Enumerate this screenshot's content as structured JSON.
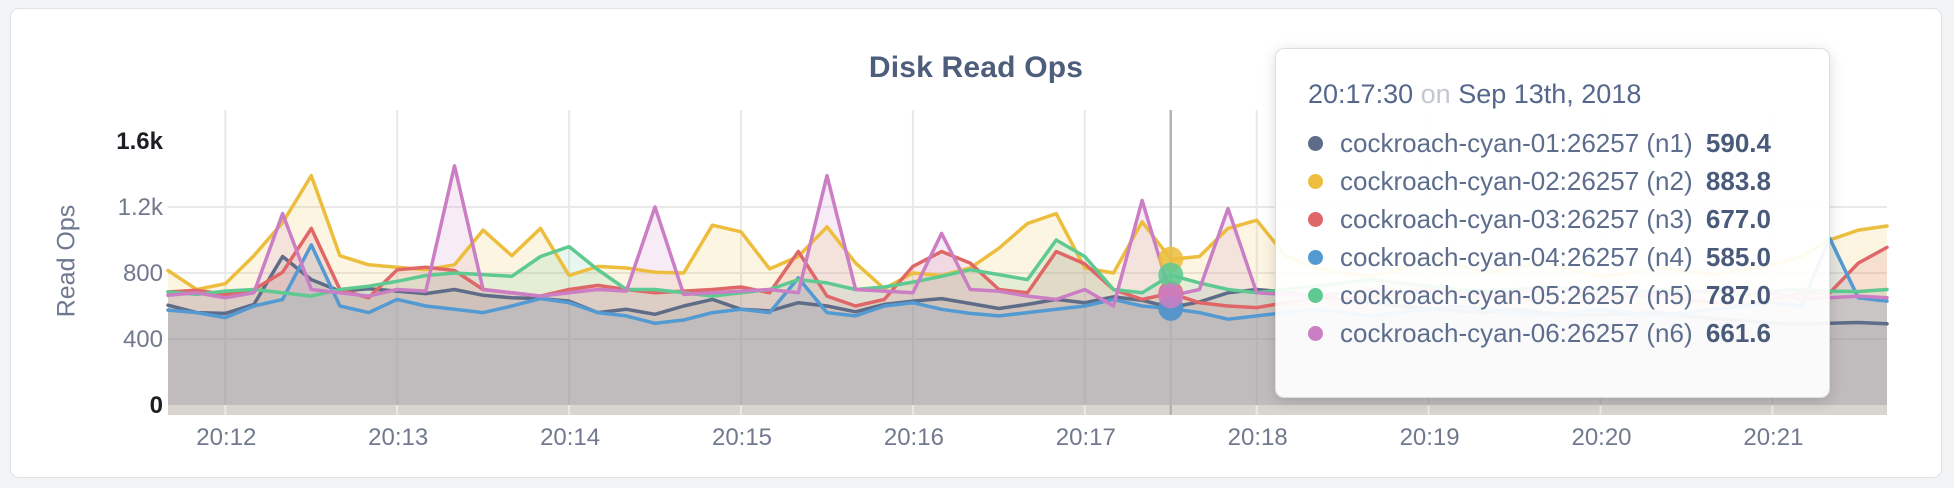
{
  "panel": {
    "title": "Disk Read Ops"
  },
  "chart_data": {
    "type": "line",
    "title": "Disk Read Ops",
    "ylabel": "Read Ops",
    "ylim": [
      0,
      1600
    ],
    "grid": true,
    "legend_position": "tooltip-only",
    "x_start_label": "20:11:40",
    "x_interval_seconds": 10,
    "x_ticks": [
      {
        "t": 20,
        "label": "20:12"
      },
      {
        "t": 80,
        "label": "20:13"
      },
      {
        "t": 140,
        "label": "20:14"
      },
      {
        "t": 200,
        "label": "20:15"
      },
      {
        "t": 260,
        "label": "20:16"
      },
      {
        "t": 320,
        "label": "20:17"
      },
      {
        "t": 380,
        "label": "20:18"
      },
      {
        "t": 440,
        "label": "20:19"
      },
      {
        "t": 500,
        "label": "20:20"
      },
      {
        "t": 560,
        "label": "20:21"
      }
    ],
    "y_ticks": [
      {
        "v": 0,
        "label": "0",
        "bold": true
      },
      {
        "v": 400,
        "label": "400",
        "bold": false
      },
      {
        "v": 800,
        "label": "800",
        "bold": false
      },
      {
        "v": 1200,
        "label": "1.2k",
        "bold": false
      },
      {
        "v": 1600,
        "label": "1.6k",
        "bold": true
      }
    ],
    "hover": {
      "index": 35,
      "t": 350,
      "time": "20:17:30"
    },
    "series": [
      {
        "name": "cockroach-cyan-01:26257 (n1)",
        "color": "#5f6c87",
        "values": [
          605,
          560,
          555,
          610,
          900,
          760,
          690,
          705,
          690,
          675,
          700,
          665,
          650,
          645,
          630,
          560,
          580,
          550,
          600,
          640,
          580,
          570,
          620,
          600,
          565,
          610,
          630,
          645,
          615,
          585,
          610,
          640,
          620,
          655,
          635,
          590.4,
          625,
          680,
          700,
          685,
          660,
          640,
          620,
          600,
          585,
          570,
          560,
          580,
          560,
          545,
          548,
          552,
          560,
          540,
          525,
          510,
          495,
          490,
          495,
          500,
          492
        ]
      },
      {
        "name": "cockroach-cyan-02:26257 (n2)",
        "color": "#edbe3d",
        "values": [
          815,
          700,
          735,
          905,
          1105,
          1390,
          905,
          850,
          835,
          820,
          850,
          1060,
          905,
          1070,
          785,
          840,
          830,
          805,
          800,
          1090,
          1050,
          825,
          900,
          1080,
          860,
          705,
          800,
          785,
          830,
          950,
          1100,
          1160,
          830,
          800,
          1110,
          883.8,
          900,
          1070,
          1120,
          905,
          835,
          800,
          780,
          820,
          900,
          850,
          800,
          830,
          870,
          820,
          780,
          800,
          830,
          810,
          790,
          820,
          850,
          900,
          1000,
          1060,
          1085
        ]
      },
      {
        "name": "cockroach-cyan-03:26257 (n3)",
        "color": "#e06767",
        "values": [
          685,
          695,
          670,
          700,
          805,
          1070,
          700,
          650,
          820,
          835,
          815,
          700,
          680,
          660,
          700,
          725,
          700,
          680,
          690,
          700,
          715,
          680,
          930,
          660,
          600,
          640,
          840,
          930,
          860,
          700,
          680,
          930,
          855,
          700,
          640,
          677,
          620,
          600,
          590,
          620,
          650,
          640,
          660,
          680,
          700,
          690,
          670,
          650,
          630,
          620,
          640,
          660,
          680,
          640,
          620,
          600,
          640,
          680,
          680,
          860,
          955
        ]
      },
      {
        "name": "cockroach-cyan-04:26257 (n4)",
        "color": "#549ad2",
        "values": [
          575,
          560,
          530,
          600,
          640,
          970,
          600,
          560,
          640,
          600,
          580,
          560,
          600,
          645,
          620,
          560,
          540,
          495,
          515,
          560,
          580,
          560,
          770,
          560,
          540,
          600,
          620,
          580,
          555,
          540,
          560,
          580,
          600,
          640,
          600,
          585,
          560,
          520,
          540,
          560,
          580,
          560,
          540,
          560,
          580,
          600,
          580,
          560,
          540,
          560,
          580,
          560,
          540,
          560,
          580,
          600,
          620,
          600,
          1010,
          650,
          630
        ]
      },
      {
        "name": "cockroach-cyan-05:26257 (n5)",
        "color": "#5fc992",
        "values": [
          685,
          670,
          690,
          700,
          680,
          660,
          700,
          720,
          750,
          785,
          800,
          790,
          780,
          900,
          960,
          820,
          700,
          700,
          680,
          660,
          680,
          700,
          760,
          740,
          700,
          715,
          745,
          780,
          820,
          790,
          760,
          1000,
          900,
          700,
          680,
          787,
          740,
          700,
          680,
          700,
          720,
          740,
          760,
          740,
          720,
          700,
          690,
          700,
          710,
          700,
          690,
          680,
          700,
          690,
          680,
          670,
          690,
          700,
          690,
          688,
          700
        ]
      },
      {
        "name": "cockroach-cyan-06:26257 (n6)",
        "color": "#cb7ec4",
        "values": [
          665,
          680,
          650,
          680,
          1160,
          700,
          680,
          660,
          700,
          690,
          1450,
          700,
          680,
          660,
          680,
          700,
          690,
          1200,
          670,
          680,
          690,
          700,
          680,
          1390,
          700,
          690,
          680,
          1040,
          700,
          690,
          660,
          640,
          700,
          600,
          1240,
          661.6,
          700,
          1190,
          680,
          670,
          660,
          680,
          700,
          690,
          680,
          670,
          660,
          680,
          700,
          690,
          680,
          670,
          660,
          680,
          700,
          690,
          680,
          640,
          650,
          660,
          650
        ]
      }
    ]
  },
  "tooltip": {
    "time": "20:17:30",
    "conj": "on",
    "date": "Sep 13th, 2018",
    "rows": [
      {
        "label": "cockroach-cyan-01:26257 (n1)",
        "value": "590.4",
        "color": "#5f6c87"
      },
      {
        "label": "cockroach-cyan-02:26257 (n2)",
        "value": "883.8",
        "color": "#edbe3d"
      },
      {
        "label": "cockroach-cyan-03:26257 (n3)",
        "value": "677.0",
        "color": "#e06767"
      },
      {
        "label": "cockroach-cyan-04:26257 (n4)",
        "value": "585.0",
        "color": "#549ad2"
      },
      {
        "label": "cockroach-cyan-05:26257 (n5)",
        "value": "787.0",
        "color": "#5fc992"
      },
      {
        "label": "cockroach-cyan-06:26257 (n6)",
        "value": "661.6",
        "color": "#cb7ec4"
      }
    ]
  }
}
